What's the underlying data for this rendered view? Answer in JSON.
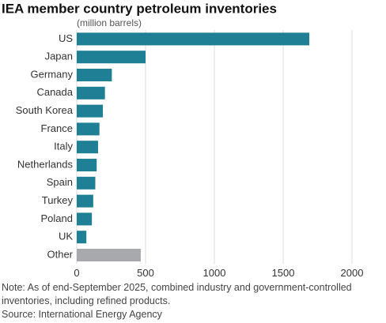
{
  "chart_data": {
    "type": "hbar",
    "title": "IEA member country petroleum inventories",
    "subtitle": "(million barrels)",
    "categories": [
      "US",
      "Japan",
      "Germany",
      "Canada",
      "South Korea",
      "France",
      "Italy",
      "Netherlands",
      "Spain",
      "Turkey",
      "Poland",
      "UK",
      "Other"
    ],
    "values": [
      1690,
      500,
      255,
      205,
      190,
      165,
      155,
      145,
      135,
      120,
      110,
      70,
      465
    ],
    "colors": [
      "#1f7f95",
      "#1f7f95",
      "#1f7f95",
      "#1f7f95",
      "#1f7f95",
      "#1f7f95",
      "#1f7f95",
      "#1f7f95",
      "#1f7f95",
      "#1f7f95",
      "#1f7f95",
      "#1f7f95",
      "#a7a9ac"
    ],
    "xlim": [
      0,
      2000
    ],
    "xticks": [
      0,
      500,
      1000,
      1500,
      2000
    ],
    "grid": true,
    "note": "Note: As of end-September 2025, combined industry and government-controlled inventories, including refined products.",
    "source": "Source: International Energy Agency"
  }
}
